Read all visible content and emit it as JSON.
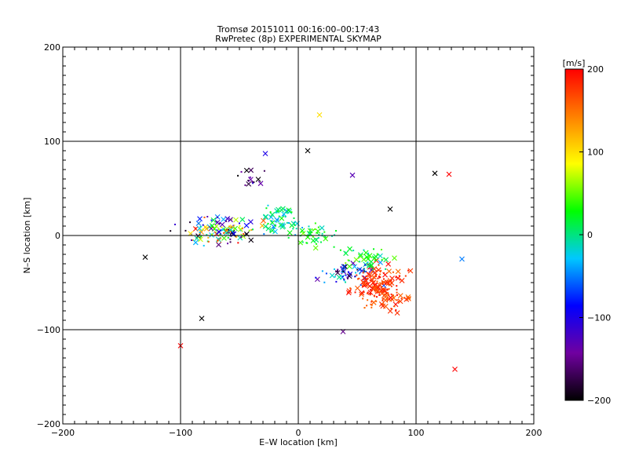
{
  "chart_data": {
    "type": "scatter",
    "title": "Tromsø 20151011 00:16:00–00:17:43",
    "subtitle": "RwPretec (8p) EXPERIMENTAL SKYMAP",
    "xlabel": "E–W location [km]",
    "ylabel": "N–S location [km]",
    "xlim": [
      -200,
      200
    ],
    "ylim": [
      -200,
      200
    ],
    "xticks": [
      "−200",
      "−100",
      "0",
      "100",
      "200"
    ],
    "yticks": [
      "200",
      "100",
      "0",
      "−100",
      "−200"
    ],
    "grid": true,
    "colorbar": {
      "label": "[m/s]",
      "range": [
        -200,
        200
      ],
      "ticks": [
        "200",
        "100",
        "0",
        "−100",
        "−200"
      ],
      "colors": [
        "#000000",
        "#7000a0",
        "#0000ff",
        "#00c8ff",
        "#00ff00",
        "#ffff00",
        "#ff8000",
        "#ff0000"
      ]
    },
    "markers": {
      "cross": "large markers",
      "dot": "small markers"
    },
    "clusters": [
      {
        "center": [
          -65,
          5
        ],
        "spread": [
          25,
          12
        ],
        "count": 130,
        "velocity_range": [
          -200,
          200
        ]
      },
      {
        "center": [
          -15,
          15
        ],
        "spread": [
          15,
          15
        ],
        "count": 60,
        "velocity_range": [
          -50,
          30
        ]
      },
      {
        "center": [
          15,
          0
        ],
        "spread": [
          12,
          10
        ],
        "count": 40,
        "velocity_range": [
          -20,
          60
        ]
      },
      {
        "center": [
          40,
          -40
        ],
        "spread": [
          20,
          12
        ],
        "count": 60,
        "velocity_range": [
          -200,
          0
        ]
      },
      {
        "center": [
          70,
          -55
        ],
        "spread": [
          18,
          18
        ],
        "count": 180,
        "velocity_range": [
          150,
          200
        ]
      },
      {
        "center": [
          60,
          -25
        ],
        "spread": [
          20,
          10
        ],
        "count": 40,
        "velocity_range": [
          -20,
          60
        ]
      },
      {
        "center": [
          -40,
          60
        ],
        "spread": [
          10,
          8
        ],
        "count": 15,
        "velocity_range": [
          -200,
          -100
        ]
      }
    ],
    "outliers": [
      {
        "x": 8,
        "y": 90,
        "v": -200
      },
      {
        "x": -28,
        "y": 87,
        "v": -100
      },
      {
        "x": 46,
        "y": 64,
        "v": -130
      },
      {
        "x": 116,
        "y": 66,
        "v": -200
      },
      {
        "x": 128,
        "y": 65,
        "v": 200
      },
      {
        "x": 18,
        "y": 128,
        "v": 100
      },
      {
        "x": -130,
        "y": -23,
        "v": -200
      },
      {
        "x": -100,
        "y": -117,
        "v": 200
      },
      {
        "x": -82,
        "y": -88,
        "v": -200
      },
      {
        "x": 38,
        "y": -102,
        "v": -150
      },
      {
        "x": 133,
        "y": -142,
        "v": 200
      },
      {
        "x": 139,
        "y": -25,
        "v": -50
      },
      {
        "x": 78,
        "y": 28,
        "v": -200
      }
    ]
  }
}
